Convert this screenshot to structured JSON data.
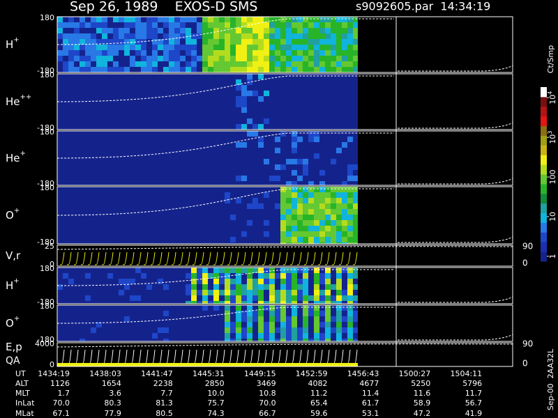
{
  "chart_data": {
    "type": "spectrogram",
    "title": "Sep 26, 1989    EXOS-D SMS",
    "file_label": "s9092605.par  14:34:19",
    "side_note": "Sep-00  2AA32L",
    "panels": [
      {
        "kind": "spectrogram",
        "label": "H",
        "sup": "+",
        "ylim": [
          -180,
          180
        ],
        "yticks": [
          180,
          -180
        ],
        "style": "h1"
      },
      {
        "kind": "spectrogram",
        "label": "He",
        "sup": "++",
        "ylim": [
          -180,
          180
        ],
        "yticks": [
          180,
          -180
        ],
        "style": "he2"
      },
      {
        "kind": "spectrogram",
        "label": "He",
        "sup": "+",
        "ylim": [
          -180,
          180
        ],
        "yticks": [
          180,
          -180
        ],
        "style": "he1"
      },
      {
        "kind": "spectrogram",
        "label": "O",
        "sup": "+",
        "ylim": [
          -180,
          180
        ],
        "yticks": [
          180,
          -180
        ],
        "style": "o1"
      },
      {
        "kind": "line",
        "label": "V,r",
        "ylim": [
          0,
          25
        ],
        "yticks": [
          25,
          0
        ],
        "y2lim": [
          0,
          90
        ],
        "y2ticks": [
          90,
          0
        ]
      },
      {
        "kind": "spectrogram",
        "label": "H",
        "sup": "+",
        "ylim": [
          -180,
          180
        ],
        "yticks": [
          180,
          -180
        ],
        "style": "h2"
      },
      {
        "kind": "spectrogram",
        "label": "O",
        "sup": "+",
        "ylim": [
          -180,
          180
        ],
        "yticks": [
          180,
          -180
        ],
        "style": "o2"
      },
      {
        "kind": "line",
        "label": "E,p",
        "label2": "QA",
        "ylim": [
          0,
          4000
        ],
        "yticks": [
          4000,
          0
        ],
        "y2lim": [
          0,
          90
        ],
        "y2ticks": [
          90,
          0
        ]
      }
    ],
    "colorbar": {
      "label": "Ct/Smp",
      "log": true,
      "clim": [
        0.75,
        18500
      ],
      "ticks": [
        1,
        10,
        100,
        {
          "value": 1000,
          "label": "10",
          "exponent": "3"
        },
        {
          "value": 10000,
          "label": "10",
          "exponent": "4"
        }
      ],
      "colors": [
        "#14238c",
        "#1a30b0",
        "#1e46c8",
        "#2878e6",
        "#10b4dc",
        "#20a0a0",
        "#128c3c",
        "#28b428",
        "#64c832",
        "#b4dc1e",
        "#f0f014",
        "#c8b414",
        "#a0a014",
        "#8c6e14",
        "#e61414",
        "#b41414",
        "#781010",
        "#ffffff"
      ]
    },
    "table": {
      "rows": [
        [
          "UT",
          "1434:19",
          "1438:03",
          "1441:47",
          "1445:31",
          "1449:15",
          "1452:59",
          "1456:43",
          "1500:27",
          "1504:11"
        ],
        [
          "ALT",
          "1126",
          "1654",
          "2238",
          "2850",
          "3469",
          "4082",
          "4677",
          "5250",
          "5796"
        ],
        [
          "MLT",
          "1.7",
          "3.6",
          "7.7",
          "10.0",
          "10.8",
          "11.2",
          "11.4",
          "11.6",
          "11.7"
        ],
        [
          "InLat",
          "70.0",
          "80.3",
          "81.3",
          "75.7",
          "70.0",
          "65.4",
          "61.7",
          "58.9",
          "56.7"
        ],
        [
          "MLat",
          "67.1",
          "77.9",
          "80.5",
          "74.3",
          "66.7",
          "59.6",
          "53.1",
          "47.2",
          "41.9"
        ]
      ]
    }
  }
}
